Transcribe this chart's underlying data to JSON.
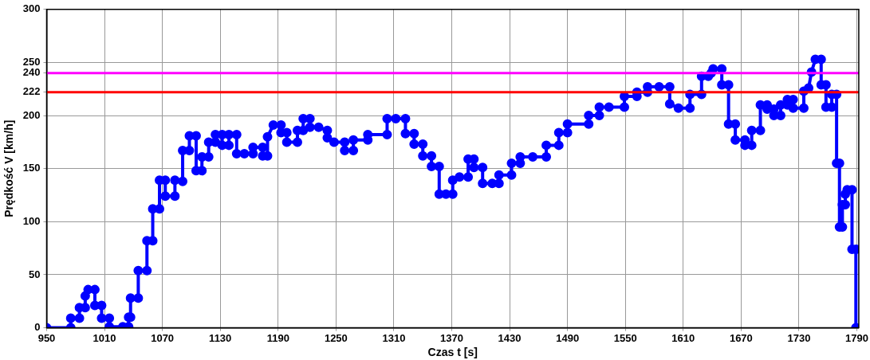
{
  "chart_data": {
    "type": "line",
    "xlabel": "Czas t [s]",
    "ylabel": "Prędkość V [km/h]",
    "xlim": [
      950,
      1792
    ],
    "xticks": [
      950,
      1010,
      1070,
      1130,
      1190,
      1250,
      1310,
      1370,
      1430,
      1490,
      1550,
      1610,
      1670,
      1730,
      1790
    ],
    "ylim": [
      0,
      300
    ],
    "yticks": [
      0,
      50,
      100,
      150,
      200,
      222,
      240,
      250,
      300
    ],
    "grid": true,
    "legend": false,
    "marker": "circle",
    "line_style": "solid",
    "ref_lines": [
      {
        "axis": "y",
        "value": 240,
        "color": "#ff00ff"
      },
      {
        "axis": "y",
        "value": 222,
        "color": "#ff0000"
      }
    ],
    "series": [
      {
        "color": "#0000ff",
        "x": [
          950,
          975,
          975,
          984,
          984,
          990,
          990,
          993,
          1000,
          1000,
          1007,
          1007,
          1015,
          1015,
          1029,
          1035,
          1035,
          1037,
          1037,
          1045,
          1045,
          1054,
          1054,
          1060,
          1060,
          1067,
          1067,
          1073,
          1073,
          1083,
          1083,
          1091,
          1091,
          1098,
          1098,
          1105,
          1105,
          1111,
          1111,
          1118,
          1118,
          1125,
          1125,
          1132,
          1132,
          1139,
          1139,
          1147,
          1147,
          1155,
          1164,
          1164,
          1174,
          1174,
          1179,
          1179,
          1185,
          1193,
          1193,
          1199,
          1199,
          1210,
          1210,
          1216,
          1216,
          1223,
          1223,
          1232,
          1241,
          1241,
          1248,
          1259,
          1259,
          1268,
          1268,
          1283,
          1283,
          1303,
          1303,
          1312,
          1322,
          1322,
          1331,
          1331,
          1340,
          1340,
          1349,
          1349,
          1357,
          1357,
          1364,
          1371,
          1371,
          1378,
          1387,
          1387,
          1393,
          1393,
          1402,
          1402,
          1412,
          1419,
          1419,
          1432,
          1432,
          1441,
          1441,
          1454,
          1468,
          1468,
          1481,
          1481,
          1490,
          1490,
          1512,
          1512,
          1523,
          1523,
          1533,
          1549,
          1549,
          1562,
          1562,
          1573,
          1573,
          1585,
          1596,
          1596,
          1605,
          1617,
          1617,
          1629,
          1629,
          1636,
          1639,
          1641,
          1650,
          1650,
          1657,
          1657,
          1664,
          1664,
          1674,
          1674,
          1681,
          1681,
          1690,
          1690,
          1697,
          1697,
          1704,
          1704,
          1711,
          1711,
          1718,
          1718,
          1724,
          1724,
          1735,
          1735,
          1740,
          1743,
          1747,
          1753,
          1753,
          1758,
          1758,
          1764,
          1764,
          1769,
          1769,
          1772,
          1772,
          1775,
          1775,
          1778,
          1778,
          1780,
          1785,
          1785,
          1789,
          1789
        ],
        "values": [
          0,
          0,
          9,
          9,
          19,
          19,
          30,
          36,
          36,
          21,
          21,
          9,
          9,
          1,
          1,
          1,
          10,
          10,
          28,
          28,
          54,
          54,
          82,
          82,
          112,
          112,
          139,
          139,
          124,
          124,
          139,
          138,
          167,
          167,
          181,
          181,
          148,
          148,
          161,
          161,
          175,
          175,
          182,
          182,
          172,
          172,
          182,
          182,
          164,
          164,
          164,
          170,
          170,
          162,
          162,
          180,
          191,
          191,
          184,
          184,
          175,
          175,
          186,
          186,
          197,
          197,
          189,
          189,
          186,
          179,
          175,
          175,
          167,
          167,
          177,
          177,
          182,
          182,
          197,
          197,
          197,
          183,
          183,
          173,
          173,
          162,
          162,
          152,
          152,
          126,
          126,
          126,
          139,
          142,
          142,
          159,
          159,
          151,
          151,
          136,
          136,
          136,
          144,
          144,
          155,
          155,
          161,
          161,
          161,
          172,
          172,
          184,
          184,
          192,
          192,
          200,
          200,
          208,
          208,
          208,
          218,
          218,
          222,
          222,
          227,
          227,
          227,
          211,
          207,
          207,
          220,
          220,
          237,
          237,
          240,
          244,
          244,
          229,
          229,
          192,
          192,
          177,
          177,
          172,
          172,
          186,
          186,
          210,
          210,
          206,
          206,
          200,
          200,
          210,
          210,
          215,
          215,
          207,
          207,
          223,
          226,
          241,
          253,
          253,
          229,
          229,
          208,
          208,
          220,
          220,
          155,
          155,
          95,
          95,
          116,
          116,
          126,
          130,
          130,
          74,
          74,
          0
        ]
      }
    ]
  }
}
